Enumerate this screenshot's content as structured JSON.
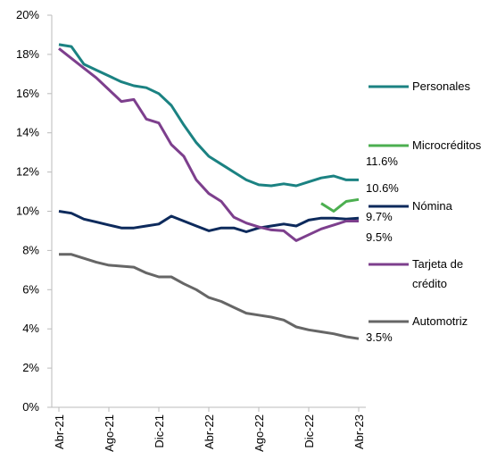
{
  "chart_data": {
    "type": "line",
    "categories": [
      "Abr-21",
      null,
      null,
      null,
      "Ago-21",
      null,
      null,
      null,
      "Dic-21",
      null,
      null,
      null,
      "Abr-22",
      null,
      null,
      null,
      "Ago-22",
      null,
      null,
      null,
      "Dic-22",
      null,
      null,
      null,
      "Abr-23"
    ],
    "series": [
      {
        "name": "Personales",
        "color": "#1b8282",
        "values": [
          18.5,
          18.4,
          17.5,
          17.2,
          16.9,
          16.6,
          16.4,
          16.3,
          16.0,
          15.4,
          14.4,
          13.5,
          12.8,
          12.4,
          12.0,
          11.6,
          11.35,
          11.3,
          11.4,
          11.3,
          11.5,
          11.7,
          11.8,
          11.6,
          11.6
        ],
        "value_labels": [
          null,
          null,
          null,
          null,
          null,
          null,
          null,
          null,
          null,
          null,
          null,
          null,
          null,
          null,
          null,
          null,
          null,
          null,
          null,
          null,
          null,
          null,
          null,
          null,
          "11.6%"
        ]
      },
      {
        "name": "Microcréditos",
        "color": "#4caf50",
        "values": [
          null,
          null,
          null,
          null,
          null,
          null,
          null,
          null,
          null,
          null,
          null,
          null,
          null,
          null,
          null,
          null,
          null,
          null,
          null,
          null,
          null,
          10.4,
          10.0,
          10.5,
          10.6
        ],
        "value_labels": [
          null,
          null,
          null,
          null,
          null,
          null,
          null,
          null,
          null,
          null,
          null,
          null,
          null,
          null,
          null,
          null,
          null,
          null,
          null,
          null,
          null,
          null,
          null,
          null,
          "10.6%"
        ]
      },
      {
        "name": "Nómina",
        "color": "#0d2a5c",
        "values": [
          10.0,
          9.9,
          9.6,
          9.45,
          9.3,
          9.15,
          9.15,
          9.25,
          9.35,
          9.75,
          9.5,
          9.25,
          9.0,
          9.15,
          9.15,
          8.95,
          9.15,
          9.25,
          9.35,
          9.25,
          9.55,
          9.65,
          9.65,
          9.6,
          9.65
        ],
        "value_labels": [
          null,
          null,
          null,
          null,
          null,
          null,
          null,
          null,
          null,
          null,
          null,
          null,
          null,
          null,
          null,
          null,
          null,
          null,
          null,
          null,
          null,
          null,
          null,
          null,
          "9.7%"
        ]
      },
      {
        "name": "Tarjeta de crédito",
        "color": "#7d3f8d",
        "values": [
          18.3,
          17.8,
          17.3,
          16.8,
          16.2,
          15.6,
          15.7,
          14.7,
          14.5,
          13.4,
          12.8,
          11.6,
          10.9,
          10.5,
          9.7,
          9.4,
          9.2,
          9.05,
          9.0,
          8.5,
          8.8,
          9.1,
          9.3,
          9.5,
          9.5
        ],
        "value_labels": [
          null,
          null,
          null,
          null,
          null,
          null,
          null,
          null,
          null,
          null,
          null,
          null,
          null,
          null,
          null,
          null,
          null,
          null,
          null,
          null,
          null,
          null,
          null,
          null,
          "9.5%"
        ]
      },
      {
        "name": "Automotriz",
        "color": "#666666",
        "values": [
          7.8,
          7.8,
          7.6,
          7.4,
          7.25,
          7.2,
          7.15,
          6.85,
          6.65,
          6.65,
          6.3,
          6.0,
          5.6,
          5.4,
          5.1,
          4.8,
          4.7,
          4.6,
          4.45,
          4.1,
          3.95,
          3.85,
          3.75,
          3.6,
          3.5
        ],
        "value_labels": [
          null,
          null,
          null,
          null,
          null,
          null,
          null,
          null,
          null,
          null,
          null,
          null,
          null,
          null,
          null,
          null,
          null,
          null,
          null,
          null,
          null,
          null,
          null,
          null,
          "3.5%"
        ]
      }
    ],
    "ylim": [
      0,
      20
    ],
    "yticks": [
      {
        "value": 0,
        "label": "0%"
      },
      {
        "value": 2,
        "label": "2%"
      },
      {
        "value": 4,
        "label": "4%"
      },
      {
        "value": 6,
        "label": "6%"
      },
      {
        "value": 8,
        "label": "8%"
      },
      {
        "value": 10,
        "label": "10%"
      },
      {
        "value": 12,
        "label": "12%"
      },
      {
        "value": 14,
        "label": "14%"
      },
      {
        "value": 16,
        "label": "16%"
      },
      {
        "value": 18,
        "label": "18%"
      },
      {
        "value": 20,
        "label": "20%"
      }
    ],
    "grid": false,
    "legend": "right"
  }
}
